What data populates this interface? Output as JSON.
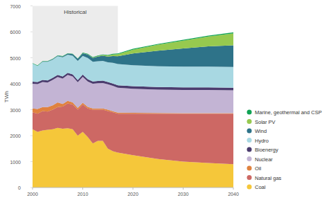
{
  "chart_data": {
    "type": "area",
    "stacked": true,
    "grid": false,
    "legend": "right",
    "y_label": "TWh",
    "annotations": [
      {
        "text": "Historical",
        "x": [
          2000,
          2017
        ]
      }
    ],
    "x": [
      2000,
      2001,
      2002,
      2003,
      2004,
      2005,
      2006,
      2007,
      2008,
      2009,
      2010,
      2011,
      2012,
      2013,
      2014,
      2015,
      2016,
      2017,
      2020,
      2025,
      2030,
      2035,
      2040
    ],
    "xlim": [
      2000,
      2040
    ],
    "xticks": [
      2000,
      2010,
      2020,
      2030,
      2040
    ],
    "ylim": [
      0,
      7000
    ],
    "yticks": [
      0,
      1000,
      2000,
      3000,
      4000,
      5000,
      6000,
      7000
    ],
    "series": [
      {
        "name": "Coal",
        "color": "#f5c73a",
        "values": [
          2250,
          2150,
          2200,
          2230,
          2250,
          2300,
          2270,
          2290,
          2250,
          2000,
          2150,
          1950,
          1700,
          1800,
          1800,
          1500,
          1400,
          1350,
          1250,
          1100,
          1000,
          950,
          900
        ]
      },
      {
        "name": "Natural gas",
        "color": "#cd6864",
        "values": [
          650,
          700,
          750,
          700,
          750,
          800,
          850,
          950,
          950,
          1000,
          1050,
          1100,
          1300,
          1200,
          1200,
          1450,
          1500,
          1500,
          1600,
          1750,
          1850,
          1900,
          1950
        ]
      },
      {
        "name": "Oil",
        "color": "#e0823f",
        "values": [
          150,
          180,
          150,
          170,
          170,
          180,
          100,
          100,
          80,
          70,
          70,
          60,
          50,
          50,
          50,
          50,
          40,
          40,
          30,
          25,
          20,
          20,
          20
        ]
      },
      {
        "name": "Nuclear",
        "color": "#c3b4d4",
        "values": [
          950,
          960,
          970,
          950,
          980,
          980,
          980,
          1000,
          1000,
          990,
          1000,
          980,
          950,
          970,
          980,
          980,
          980,
          960,
          930,
          900,
          890,
          890,
          880
        ]
      },
      {
        "name": "Bioenergy",
        "color": "#4b3c6e",
        "values": [
          80,
          75,
          80,
          80,
          80,
          80,
          80,
          80,
          80,
          80,
          85,
          85,
          85,
          85,
          90,
          90,
          90,
          90,
          95,
          100,
          100,
          100,
          100
        ]
      },
      {
        "name": "Hydro",
        "color": "#a8d8e2",
        "values": [
          700,
          620,
          700,
          720,
          700,
          720,
          740,
          700,
          720,
          740,
          720,
          820,
          760,
          760,
          760,
          760,
          800,
          820,
          810,
          800,
          800,
          800,
          800
        ]
      },
      {
        "name": "Wind",
        "color": "#2e7389",
        "values": [
          0,
          5,
          10,
          10,
          15,
          20,
          30,
          40,
          60,
          80,
          100,
          130,
          150,
          180,
          200,
          220,
          260,
          300,
          450,
          600,
          700,
          780,
          830
        ]
      },
      {
        "name": "Solar PV",
        "color": "#97c94f",
        "values": [
          0,
          0,
          0,
          0,
          0,
          0,
          0,
          0,
          0,
          0,
          5,
          8,
          10,
          20,
          30,
          40,
          60,
          80,
          150,
          230,
          300,
          380,
          460
        ]
      },
      {
        "name": "Marine, geothermal and CSP",
        "color": "#10a354",
        "values": [
          15,
          15,
          15,
          15,
          15,
          15,
          15,
          15,
          15,
          15,
          20,
          20,
          20,
          20,
          20,
          20,
          25,
          25,
          30,
          30,
          35,
          35,
          40
        ]
      }
    ]
  }
}
